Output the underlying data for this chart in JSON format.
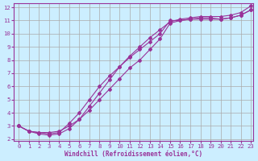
{
  "xlabel": "Windchill (Refroidissement éolien,°C)",
  "ylabel": "",
  "background_color": "#cceeff",
  "grid_color": "#aaaaaa",
  "line_color": "#993399",
  "xlim": [
    -0.5,
    23.2
  ],
  "ylim": [
    1.85,
    12.3
  ],
  "xticks": [
    0,
    1,
    2,
    3,
    4,
    5,
    6,
    7,
    8,
    9,
    10,
    11,
    12,
    13,
    14,
    15,
    16,
    17,
    18,
    19,
    20,
    21,
    22,
    23
  ],
  "yticks": [
    2,
    3,
    4,
    5,
    6,
    7,
    8,
    9,
    10,
    11,
    12
  ],
  "line1_x": [
    0,
    1,
    2,
    3,
    4,
    5,
    6,
    7,
    8,
    9,
    10,
    11,
    12,
    13,
    14,
    15,
    16,
    17,
    18,
    19,
    20,
    21,
    22,
    23
  ],
  "line1_y": [
    3.0,
    2.6,
    2.5,
    2.5,
    2.6,
    3.0,
    3.5,
    4.2,
    5.0,
    5.8,
    6.6,
    7.4,
    8.0,
    8.8,
    9.6,
    10.8,
    11.0,
    11.1,
    11.2,
    11.2,
    11.1,
    11.2,
    11.4,
    11.8
  ],
  "line2_x": [
    0,
    1,
    2,
    3,
    4,
    5,
    6,
    7,
    8,
    9,
    10,
    11,
    12,
    13,
    14,
    15,
    16,
    17,
    18,
    19,
    20,
    21,
    22,
    23
  ],
  "line2_y": [
    3.0,
    2.6,
    2.5,
    2.4,
    2.5,
    3.2,
    4.0,
    5.0,
    6.0,
    6.8,
    7.5,
    8.2,
    8.8,
    9.4,
    10.0,
    11.0,
    11.0,
    11.1,
    11.1,
    11.1,
    11.1,
    11.2,
    11.4,
    11.8
  ],
  "line3_x": [
    0,
    1,
    2,
    3,
    4,
    5,
    6,
    7,
    8,
    9,
    10,
    11,
    12,
    13,
    14,
    15,
    16,
    17,
    18,
    19,
    20,
    21,
    22,
    23
  ],
  "line3_y": [
    3.0,
    2.6,
    2.4,
    2.3,
    2.4,
    2.8,
    3.5,
    4.5,
    5.5,
    6.5,
    7.5,
    8.3,
    9.0,
    9.7,
    10.3,
    10.9,
    11.1,
    11.2,
    11.3,
    11.3,
    11.3,
    11.4,
    11.6,
    12.1
  ]
}
